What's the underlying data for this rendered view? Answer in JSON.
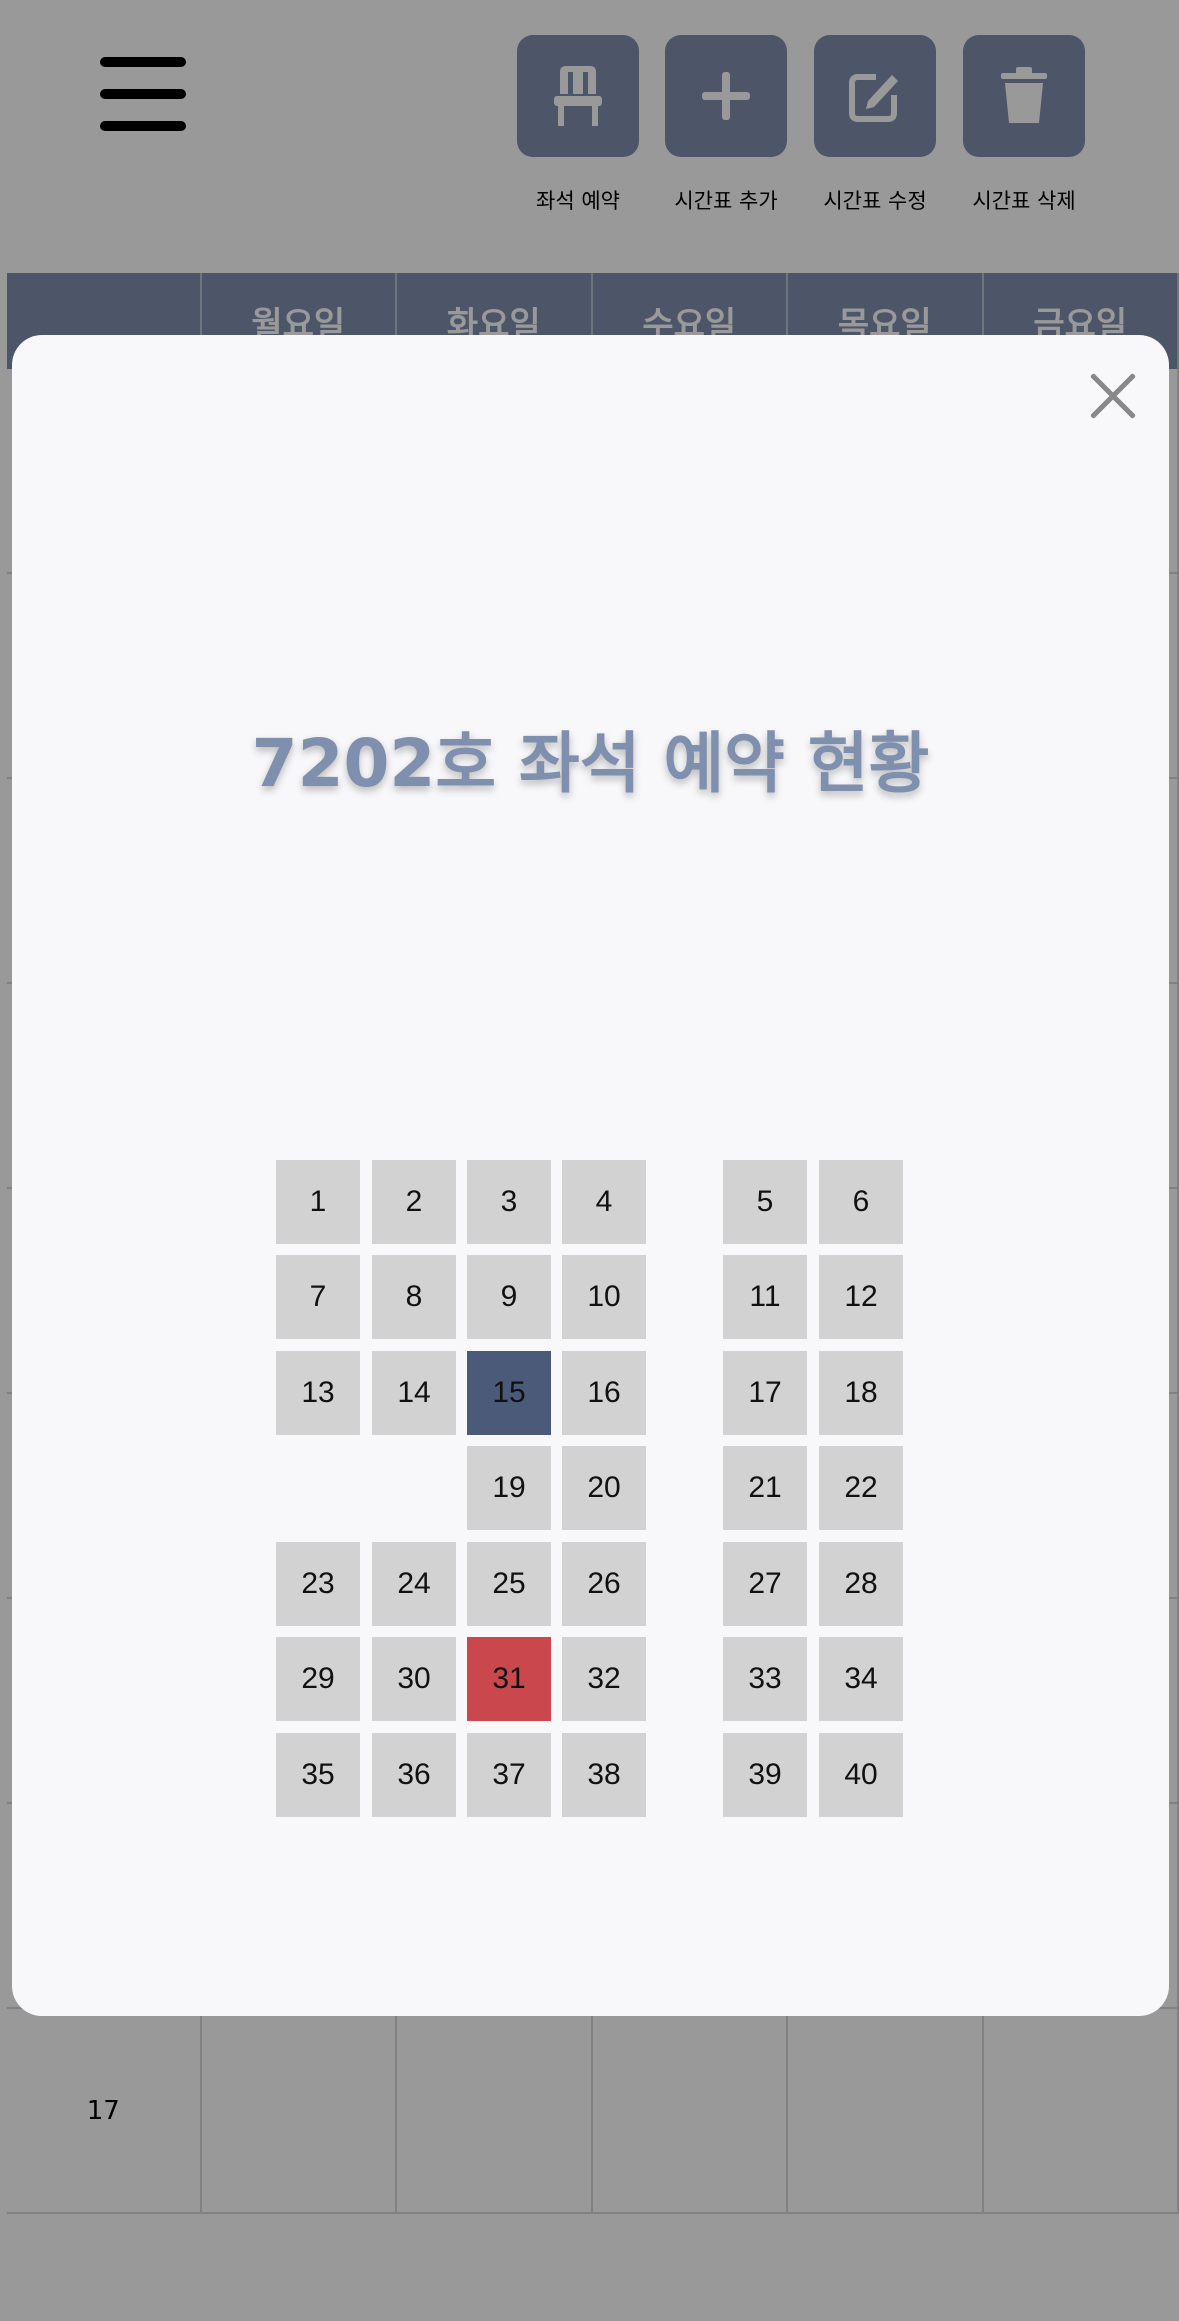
{
  "toolbar": {
    "buttons": [
      {
        "id": "seat-reserve",
        "label": "좌석 예약",
        "icon": "chair-icon"
      },
      {
        "id": "timetable-add",
        "label": "시간표 추가",
        "icon": "plus-icon"
      },
      {
        "id": "timetable-edit",
        "label": "시간표 수정",
        "icon": "edit-icon"
      },
      {
        "id": "timetable-delete",
        "label": "시간표 삭제",
        "icon": "trash-icon"
      }
    ]
  },
  "timetable": {
    "days": [
      "월요일",
      "화요일",
      "수요일",
      "목요일",
      "금요일"
    ],
    "visible_hour": "17"
  },
  "modal": {
    "title": "7202호 좌석 예약 현황",
    "close_icon": "close-icon",
    "colors": {
      "available": "#d2d2d2",
      "selected": "#4a5a78",
      "reserved": "#c9474d"
    },
    "seats": [
      {
        "num": "1",
        "status": "available"
      },
      {
        "num": "2",
        "status": "available"
      },
      {
        "num": "3",
        "status": "available"
      },
      {
        "num": "4",
        "status": "available"
      },
      {
        "num": "5",
        "status": "available"
      },
      {
        "num": "6",
        "status": "available"
      },
      {
        "num": "7",
        "status": "available"
      },
      {
        "num": "8",
        "status": "available"
      },
      {
        "num": "9",
        "status": "available"
      },
      {
        "num": "10",
        "status": "available"
      },
      {
        "num": "11",
        "status": "available"
      },
      {
        "num": "12",
        "status": "available"
      },
      {
        "num": "13",
        "status": "available"
      },
      {
        "num": "14",
        "status": "available"
      },
      {
        "num": "15",
        "status": "selected"
      },
      {
        "num": "16",
        "status": "available"
      },
      {
        "num": "17",
        "status": "available"
      },
      {
        "num": "18",
        "status": "available"
      },
      {
        "num": "19",
        "status": "available"
      },
      {
        "num": "20",
        "status": "available"
      },
      {
        "num": "21",
        "status": "available"
      },
      {
        "num": "22",
        "status": "available"
      },
      {
        "num": "23",
        "status": "available"
      },
      {
        "num": "24",
        "status": "available"
      },
      {
        "num": "25",
        "status": "available"
      },
      {
        "num": "26",
        "status": "available"
      },
      {
        "num": "27",
        "status": "available"
      },
      {
        "num": "28",
        "status": "available"
      },
      {
        "num": "29",
        "status": "available"
      },
      {
        "num": "30",
        "status": "available"
      },
      {
        "num": "31",
        "status": "reserved"
      },
      {
        "num": "32",
        "status": "available"
      },
      {
        "num": "33",
        "status": "available"
      },
      {
        "num": "34",
        "status": "available"
      },
      {
        "num": "35",
        "status": "available"
      },
      {
        "num": "36",
        "status": "available"
      },
      {
        "num": "37",
        "status": "available"
      },
      {
        "num": "38",
        "status": "available"
      },
      {
        "num": "39",
        "status": "available"
      },
      {
        "num": "40",
        "status": "available"
      }
    ]
  }
}
